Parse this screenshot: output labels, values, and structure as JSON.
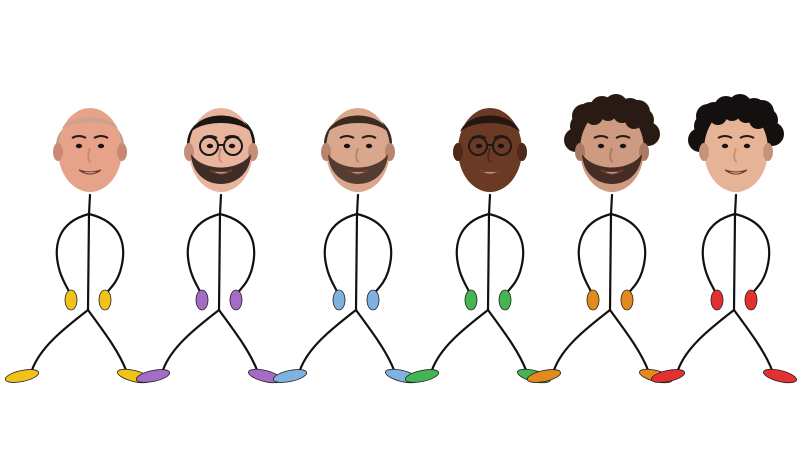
{
  "figures": [
    {
      "id": "figure-1",
      "hair": "bald",
      "skin": "#e7a38a",
      "skin_shadow": "#c98870",
      "hair_color": "#b7a08f",
      "glasses": false,
      "beard": false,
      "limb_color": "#f2c11a"
    },
    {
      "id": "figure-2",
      "hair": "short",
      "skin": "#e8b49e",
      "skin_shadow": "#c48e78",
      "hair_color": "#1d1512",
      "glasses": true,
      "beard": true,
      "limb_color": "#a46cc4"
    },
    {
      "id": "figure-3",
      "hair": "short",
      "skin": "#d9a78c",
      "skin_shadow": "#b7866d",
      "hair_color": "#3b2a22",
      "glasses": false,
      "beard": true,
      "limb_color": "#7fb2e0"
    },
    {
      "id": "figure-4",
      "hair": "tight",
      "skin": "#6b3a25",
      "skin_shadow": "#4e2818",
      "hair_color": "#241712",
      "glasses": true,
      "beard": false,
      "limb_color": "#45b552"
    },
    {
      "id": "figure-5",
      "hair": "curly",
      "skin": "#cf9a82",
      "skin_shadow": "#aa7a64",
      "hair_color": "#2a1a14",
      "glasses": false,
      "beard": true,
      "limb_color": "#e38a1c"
    },
    {
      "id": "figure-6",
      "hair": "curly",
      "skin": "#e6b396",
      "skin_shadow": "#c79378",
      "hair_color": "#151010",
      "glasses": false,
      "beard": false,
      "limb_color": "#e53030"
    }
  ]
}
